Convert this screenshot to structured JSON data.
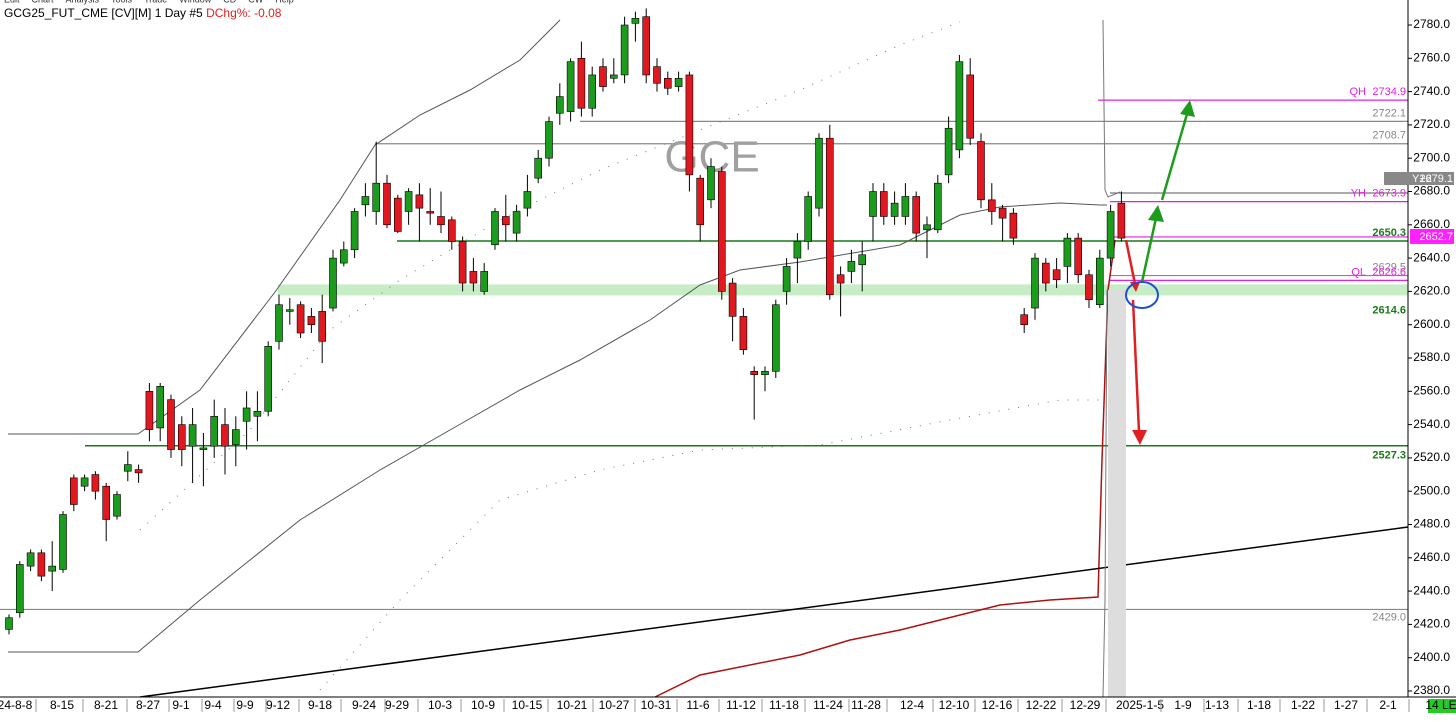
{
  "chart_data": {
    "type": "candlestick",
    "symbol": "GCG25_FUT_CME [CV][M]",
    "interval": "1 Day #5",
    "change_label": "DChg%:",
    "change": -0.08,
    "watermark": "GCE",
    "menu": [
      "Edit",
      "Chart",
      "Analysis",
      "Tools",
      "Trade",
      "Window",
      "CD",
      "CW",
      "Help"
    ],
    "up_color": "#1c9c1c",
    "down_color": "#e01820",
    "ylim": [
      2380,
      2780
    ],
    "yticks": [
      {
        "value": 2380,
        "label": "2380.0"
      },
      {
        "value": 2400,
        "label": "2400.0"
      },
      {
        "value": 2420,
        "label": "2420.0"
      },
      {
        "value": 2440,
        "label": "2440.0"
      },
      {
        "value": 2460,
        "label": "2460.0"
      },
      {
        "value": 2480,
        "label": "2480.0"
      },
      {
        "value": 2500,
        "label": "2500.0"
      },
      {
        "value": 2520,
        "label": "2520.0"
      },
      {
        "value": 2540,
        "label": "2540.0"
      },
      {
        "value": 2560,
        "label": "2560.0"
      },
      {
        "value": 2580,
        "label": "2580.0"
      },
      {
        "value": 2600,
        "label": "2600.0"
      },
      {
        "value": 2620,
        "label": "2620.0"
      },
      {
        "value": 2640,
        "label": "2640.0"
      },
      {
        "value": 2660,
        "label": "2660.0"
      },
      {
        "value": 2680,
        "label": "2680.0"
      },
      {
        "value": 2700,
        "label": "2700.0"
      },
      {
        "value": 2720,
        "label": "2720.0"
      },
      {
        "value": 2740,
        "label": "2740.0"
      },
      {
        "value": 2760,
        "label": "2760.0"
      },
      {
        "value": 2780,
        "label": "2780.0"
      }
    ],
    "x_labels": [
      "24-8-8",
      "8-15",
      "8-21",
      "8-27",
      "9-1",
      "9-4",
      "9-9",
      "9-12",
      "9-18",
      "9-24",
      "9-29",
      "10-3",
      "10-9",
      "10-15",
      "10-21",
      "10-27",
      "10-31",
      "11-6",
      "11-12",
      "11-18",
      "11-24",
      "11-28",
      "12-4",
      "12-10",
      "12-16",
      "12-22",
      "12-29",
      "2025-1-5",
      "1-9",
      "1-13",
      "1-18",
      "1-22",
      "1-27",
      "2-1",
      "14 LE"
    ],
    "levels": [
      {
        "tag": "QH",
        "value": 2734.9,
        "color": "#e020e0"
      },
      {
        "value": 2722.1,
        "color": "#888888"
      },
      {
        "value": 2708.7,
        "color": "#888888"
      },
      {
        "tag": "Y+2",
        "value": 2679.1,
        "color": "#777777"
      },
      {
        "tag": "YH",
        "value": 2673.9,
        "color": "#e020e0"
      },
      {
        "value": 2652.7,
        "color": "#e020e0"
      },
      {
        "value": 2650.3,
        "color": "#1a7a1a"
      },
      {
        "value": 2629.5,
        "color": "#888888"
      },
      {
        "tag": "QL",
        "value": 2626.6,
        "color": "#e020e0"
      },
      {
        "value": 2614.6,
        "color": "#1a7a1a"
      },
      {
        "value": 2527.3,
        "color": "#1a7a1a"
      },
      {
        "value": 2429,
        "value_label": "2429.0",
        "color": "#888888"
      }
    ],
    "candles": [
      {
        "open": 2417,
        "high": 2426,
        "low": 2414,
        "close": 2424
      },
      {
        "open": 2427,
        "high": 2458,
        "low": 2424,
        "close": 2456
      },
      {
        "open": 2455,
        "high": 2465,
        "low": 2452,
        "close": 2463
      },
      {
        "open": 2463,
        "high": 2465,
        "low": 2446,
        "close": 2449
      },
      {
        "open": 2452,
        "high": 2470,
        "low": 2440,
        "close": 2455
      },
      {
        "open": 2453,
        "high": 2488,
        "low": 2451,
        "close": 2486
      },
      {
        "open": 2508,
        "high": 2510,
        "low": 2488,
        "close": 2492
      },
      {
        "open": 2503,
        "high": 2510,
        "low": 2500,
        "close": 2508
      },
      {
        "open": 2510,
        "high": 2512,
        "low": 2495,
        "close": 2500
      },
      {
        "open": 2503,
        "high": 2505,
        "low": 2470,
        "close": 2483
      },
      {
        "open": 2485,
        "high": 2500,
        "low": 2483,
        "close": 2498
      },
      {
        "open": 2512,
        "high": 2524,
        "low": 2506,
        "close": 2516
      },
      {
        "open": 2513,
        "high": 2516,
        "low": 2505,
        "close": 2511
      },
      {
        "open": 2560,
        "high": 2565,
        "low": 2530,
        "close": 2537
      },
      {
        "open": 2538,
        "high": 2565,
        "low": 2530,
        "close": 2563
      },
      {
        "open": 2555,
        "high": 2558,
        "low": 2520,
        "close": 2525
      },
      {
        "open": 2540,
        "high": 2545,
        "low": 2515,
        "close": 2525
      },
      {
        "open": 2527,
        "high": 2550,
        "low": 2505,
        "close": 2540
      },
      {
        "open": 2525,
        "high": 2535,
        "low": 2503,
        "close": 2526
      },
      {
        "open": 2527,
        "high": 2555,
        "low": 2520,
        "close": 2545
      },
      {
        "open": 2540,
        "high": 2550,
        "low": 2510,
        "close": 2527
      },
      {
        "open": 2528,
        "high": 2545,
        "low": 2515,
        "close": 2537
      },
      {
        "open": 2542,
        "high": 2560,
        "low": 2525,
        "close": 2550
      },
      {
        "open": 2545,
        "high": 2560,
        "low": 2530,
        "close": 2548
      },
      {
        "open": 2548,
        "high": 2590,
        "low": 2545,
        "close": 2587
      },
      {
        "open": 2590,
        "high": 2618,
        "low": 2585,
        "close": 2612
      },
      {
        "open": 2608,
        "high": 2616,
        "low": 2600,
        "close": 2609
      },
      {
        "open": 2612,
        "high": 2614,
        "low": 2592,
        "close": 2595
      },
      {
        "open": 2605,
        "high": 2610,
        "low": 2595,
        "close": 2600
      },
      {
        "open": 2608,
        "high": 2618,
        "low": 2577,
        "close": 2590
      },
      {
        "open": 2610,
        "high": 2645,
        "low": 2608,
        "close": 2640
      },
      {
        "open": 2637,
        "high": 2650,
        "low": 2635,
        "close": 2645
      },
      {
        "open": 2645,
        "high": 2670,
        "low": 2640,
        "close": 2668
      },
      {
        "open": 2672,
        "high": 2685,
        "low": 2665,
        "close": 2677
      },
      {
        "open": 2668,
        "high": 2710,
        "low": 2660,
        "close": 2685
      },
      {
        "open": 2685,
        "high": 2690,
        "low": 2658,
        "close": 2660
      },
      {
        "open": 2676,
        "high": 2678,
        "low": 2655,
        "close": 2656
      },
      {
        "open": 2668,
        "high": 2682,
        "low": 2660,
        "close": 2680
      },
      {
        "open": 2678,
        "high": 2685,
        "low": 2650,
        "close": 2670
      },
      {
        "open": 2668,
        "high": 2682,
        "low": 2660,
        "close": 2667
      },
      {
        "open": 2665,
        "high": 2680,
        "low": 2655,
        "close": 2660
      },
      {
        "open": 2663,
        "high": 2665,
        "low": 2645,
        "close": 2650
      },
      {
        "open": 2650,
        "high": 2653,
        "low": 2620,
        "close": 2625
      },
      {
        "open": 2632,
        "high": 2640,
        "low": 2620,
        "close": 2625
      },
      {
        "open": 2620,
        "high": 2637,
        "low": 2618,
        "close": 2632
      },
      {
        "open": 2648,
        "high": 2670,
        "low": 2645,
        "close": 2668
      },
      {
        "open": 2665,
        "high": 2678,
        "low": 2650,
        "close": 2660
      },
      {
        "open": 2655,
        "high": 2672,
        "low": 2650,
        "close": 2668
      },
      {
        "open": 2670,
        "high": 2690,
        "low": 2665,
        "close": 2680
      },
      {
        "open": 2688,
        "high": 2705,
        "low": 2685,
        "close": 2700
      },
      {
        "open": 2700,
        "high": 2725,
        "low": 2695,
        "close": 2722
      },
      {
        "open": 2727,
        "high": 2745,
        "low": 2720,
        "close": 2737
      },
      {
        "open": 2728,
        "high": 2760,
        "low": 2722,
        "close": 2758
      },
      {
        "open": 2760,
        "high": 2770,
        "low": 2725,
        "close": 2730
      },
      {
        "open": 2730,
        "high": 2755,
        "low": 2725,
        "close": 2750
      },
      {
        "open": 2755,
        "high": 2760,
        "low": 2740,
        "close": 2743
      },
      {
        "open": 2748,
        "high": 2760,
        "low": 2745,
        "close": 2750
      },
      {
        "open": 2750,
        "high": 2785,
        "low": 2745,
        "close": 2780
      },
      {
        "open": 2781,
        "high": 2788,
        "low": 2770,
        "close": 2784
      },
      {
        "open": 2785,
        "high": 2790,
        "low": 2745,
        "close": 2750
      },
      {
        "open": 2755,
        "high": 2760,
        "low": 2740,
        "close": 2745
      },
      {
        "open": 2748,
        "high": 2752,
        "low": 2738,
        "close": 2742
      },
      {
        "open": 2743,
        "high": 2752,
        "low": 2740,
        "close": 2748
      },
      {
        "open": 2750,
        "high": 2752,
        "low": 2680,
        "close": 2690
      },
      {
        "open": 2688,
        "high": 2690,
        "low": 2650,
        "close": 2660
      },
      {
        "open": 2675,
        "high": 2700,
        "low": 2670,
        "close": 2695
      },
      {
        "open": 2692,
        "high": 2695,
        "low": 2615,
        "close": 2620
      },
      {
        "open": 2625,
        "high": 2628,
        "low": 2590,
        "close": 2605
      },
      {
        "open": 2605,
        "high": 2610,
        "low": 2582,
        "close": 2585
      },
      {
        "open": 2572,
        "high": 2575,
        "low": 2543,
        "close": 2570
      },
      {
        "open": 2570,
        "high": 2575,
        "low": 2560,
        "close": 2572
      },
      {
        "open": 2572,
        "high": 2615,
        "low": 2568,
        "close": 2612
      },
      {
        "open": 2620,
        "high": 2640,
        "low": 2612,
        "close": 2635
      },
      {
        "open": 2640,
        "high": 2655,
        "low": 2625,
        "close": 2650
      },
      {
        "open": 2650,
        "high": 2680,
        "low": 2645,
        "close": 2677
      },
      {
        "open": 2670,
        "high": 2715,
        "low": 2665,
        "close": 2712
      },
      {
        "open": 2712,
        "high": 2720,
        "low": 2615,
        "close": 2618
      },
      {
        "open": 2630,
        "high": 2635,
        "low": 2605,
        "close": 2625
      },
      {
        "open": 2632,
        "high": 2645,
        "low": 2625,
        "close": 2638
      },
      {
        "open": 2636,
        "high": 2650,
        "low": 2620,
        "close": 2642
      },
      {
        "open": 2665,
        "high": 2685,
        "low": 2650,
        "close": 2680
      },
      {
        "open": 2680,
        "high": 2685,
        "low": 2660,
        "close": 2665
      },
      {
        "open": 2665,
        "high": 2680,
        "low": 2660,
        "close": 2673
      },
      {
        "open": 2665,
        "high": 2685,
        "low": 2660,
        "close": 2677
      },
      {
        "open": 2677,
        "high": 2680,
        "low": 2650,
        "close": 2655
      },
      {
        "open": 2657,
        "high": 2665,
        "low": 2640,
        "close": 2660
      },
      {
        "open": 2657,
        "high": 2690,
        "low": 2655,
        "close": 2685
      },
      {
        "open": 2690,
        "high": 2725,
        "low": 2685,
        "close": 2718
      },
      {
        "open": 2705,
        "high": 2762,
        "low": 2700,
        "close": 2758
      },
      {
        "open": 2750,
        "high": 2760,
        "low": 2708,
        "close": 2712
      },
      {
        "open": 2710,
        "high": 2715,
        "low": 2670,
        "close": 2675
      },
      {
        "open": 2675,
        "high": 2685,
        "low": 2660,
        "close": 2668
      },
      {
        "open": 2670,
        "high": 2672,
        "low": 2650,
        "close": 2664
      },
      {
        "open": 2667,
        "high": 2670,
        "low": 2648,
        "close": 2652
      },
      {
        "open": 2606,
        "high": 2610,
        "low": 2595,
        "close": 2600
      },
      {
        "open": 2610,
        "high": 2643,
        "low": 2603,
        "close": 2640
      },
      {
        "open": 2637,
        "high": 2640,
        "low": 2620,
        "close": 2625
      },
      {
        "open": 2633,
        "high": 2640,
        "low": 2622,
        "close": 2627
      },
      {
        "open": 2635,
        "high": 2655,
        "low": 2625,
        "close": 2652
      },
      {
        "open": 2652,
        "high": 2655,
        "low": 2625,
        "close": 2630
      },
      {
        "open": 2630,
        "high": 2633,
        "low": 2610,
        "close": 2615
      },
      {
        "open": 2612,
        "high": 2645,
        "low": 2610,
        "close": 2640
      },
      {
        "open": 2640,
        "high": 2672,
        "low": 2635,
        "close": 2668
      },
      {
        "open": 2673,
        "high": 2680,
        "low": 2650,
        "close": 2652
      }
    ]
  }
}
